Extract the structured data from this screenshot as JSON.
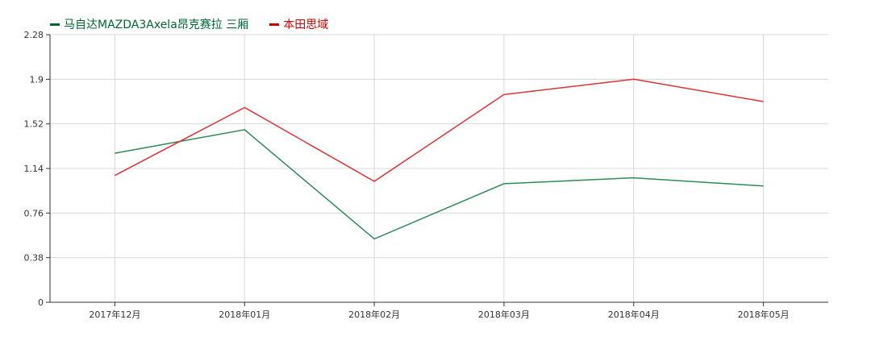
{
  "chart_data": {
    "type": "line",
    "title": "",
    "xlabel": "",
    "ylabel": "",
    "categories": [
      "2017年12月",
      "2018年01月",
      "2018年02月",
      "2018年03月",
      "2018年04月",
      "2018年05月"
    ],
    "yticks": [
      0,
      0.38,
      0.76,
      1.14,
      1.52,
      1.9,
      2.28
    ],
    "ylim": [
      0,
      2.28
    ],
    "grid": true,
    "legend_placement": "top-left",
    "series": [
      {
        "name": "马自达MAZDA3Axela昂克赛拉 三厢",
        "color": "#2e8b57",
        "legend_color": "#006633",
        "values": [
          1.27,
          1.47,
          0.54,
          1.01,
          1.06,
          0.99
        ]
      },
      {
        "name": "本田思域",
        "color": "#e03030",
        "legend_color": "#cc0000",
        "values": [
          1.08,
          1.66,
          1.03,
          1.77,
          1.9,
          1.71
        ]
      }
    ]
  }
}
